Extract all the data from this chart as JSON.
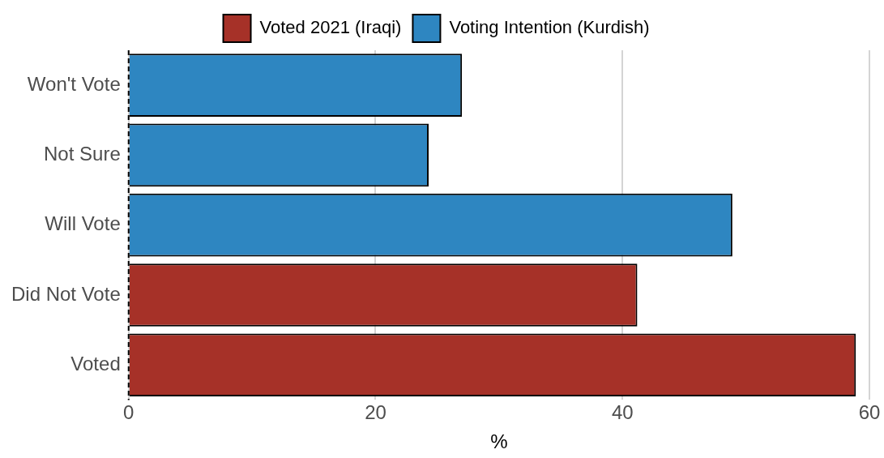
{
  "chart_data": {
    "type": "bar",
    "orientation": "horizontal",
    "xlabel": "%",
    "categories": [
      "Won't Vote",
      "Not Sure",
      "Will Vote",
      "Did Not Vote",
      "Voted"
    ],
    "series": [
      {
        "name": "Voted 2021 (Iraqi)",
        "color": "#a63128",
        "values": [
          null,
          null,
          null,
          41.2,
          58.9
        ]
      },
      {
        "name": "Voting Intention (Kurdish)",
        "color": "#2e86c1",
        "values": [
          27.0,
          24.3,
          48.9,
          null,
          null
        ]
      }
    ],
    "xlim": [
      0,
      60
    ],
    "xticks": [
      0,
      20,
      40,
      60
    ],
    "grid": "x",
    "legend": "top",
    "ref_lines": [
      {
        "axis": "x",
        "value": 0,
        "line_style": "dashed",
        "color": "#000000"
      }
    ]
  }
}
